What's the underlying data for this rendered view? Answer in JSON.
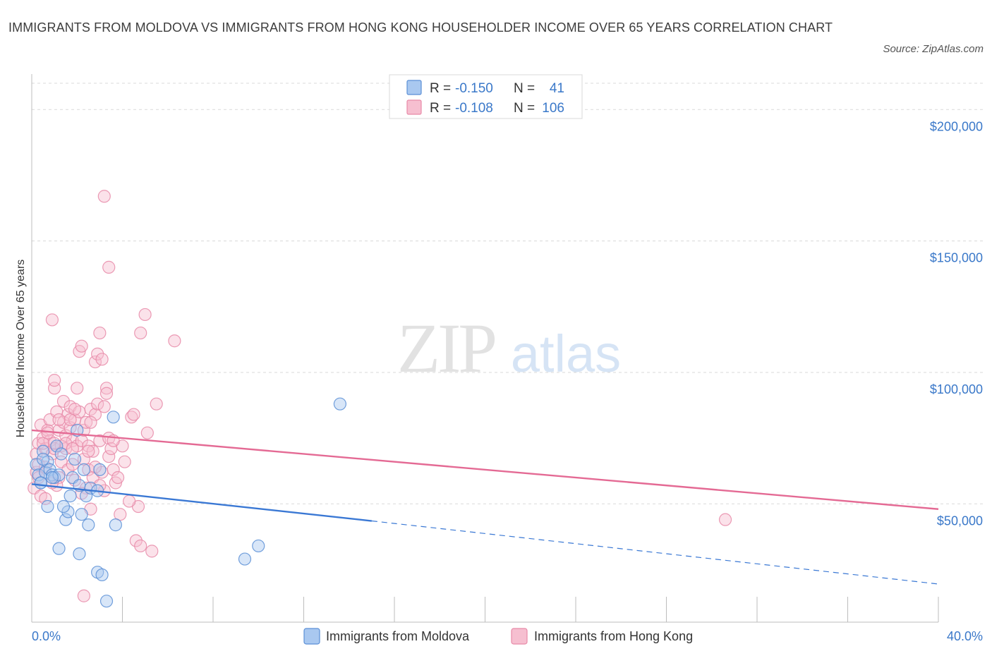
{
  "title": "IMMIGRANTS FROM MOLDOVA VS IMMIGRANTS FROM HONG KONG HOUSEHOLDER INCOME OVER 65 YEARS CORRELATION CHART",
  "source": "Source: ZipAtlas.com",
  "watermark": {
    "zip": "ZIP",
    "atlas": "atlas"
  },
  "colors": {
    "moldova_fill": "#a9c8f0",
    "moldova_stroke": "#5b8fd6",
    "moldova_line": "#3a78d4",
    "hongkong_fill": "#f6bfd0",
    "hongkong_stroke": "#e88aa8",
    "hongkong_line": "#e46a94",
    "axis_text": "#3a78c9",
    "grid": "#d9d9d9"
  },
  "legend": {
    "r_label": "R =",
    "n_label": "N =",
    "moldova": {
      "r": "-0.150",
      "n": "41"
    },
    "hongkong": {
      "r": "-0.108",
      "n": "106"
    }
  },
  "bottom_legend": {
    "moldova": "Immigrants from Moldova",
    "hongkong": "Immigrants from Hong Kong"
  },
  "chart_data": {
    "type": "scatter",
    "title": "IMMIGRANTS FROM MOLDOVA VS IMMIGRANTS FROM HONG KONG HOUSEHOLDER INCOME OVER 65 YEARS CORRELATION CHART",
    "xlabel": "",
    "ylabel": "Householder Income Over 65 years",
    "xlim": [
      0,
      40
    ],
    "ylim": [
      5000,
      210000
    ],
    "x_tick_labels": [
      "0.0%",
      "40.0%"
    ],
    "y_ticks": [
      50000,
      100000,
      150000,
      200000
    ],
    "y_tick_labels": [
      "$50,000",
      "$100,000",
      "$150,000",
      "$200,000"
    ],
    "grid": true,
    "series": [
      {
        "name": "Immigrants from Moldova",
        "r": -0.15,
        "n": 41,
        "points": [
          [
            0.2,
            65000
          ],
          [
            0.3,
            61000
          ],
          [
            0.4,
            58000
          ],
          [
            0.5,
            70000
          ],
          [
            0.6,
            62000
          ],
          [
            0.7,
            66000
          ],
          [
            0.8,
            63000
          ],
          [
            0.9,
            61000
          ],
          [
            1.0,
            60000
          ],
          [
            1.1,
            72000
          ],
          [
            1.2,
            61000
          ],
          [
            0.5,
            67000
          ],
          [
            0.7,
            49000
          ],
          [
            1.3,
            69000
          ],
          [
            1.5,
            44000
          ],
          [
            1.6,
            47000
          ],
          [
            1.7,
            53000
          ],
          [
            1.8,
            60000
          ],
          [
            1.9,
            67000
          ],
          [
            2.0,
            78000
          ],
          [
            2.1,
            57000
          ],
          [
            2.3,
            63000
          ],
          [
            2.4,
            53000
          ],
          [
            2.5,
            42000
          ],
          [
            2.6,
            56000
          ],
          [
            2.9,
            55000
          ],
          [
            3.0,
            63000
          ],
          [
            3.6,
            83000
          ],
          [
            3.7,
            42000
          ],
          [
            1.2,
            33000
          ],
          [
            2.1,
            31000
          ],
          [
            2.9,
            24000
          ],
          [
            3.1,
            23000
          ],
          [
            3.3,
            13000
          ],
          [
            9.4,
            29000
          ],
          [
            10.0,
            34000
          ],
          [
            13.6,
            88000
          ],
          [
            0.9,
            60000
          ],
          [
            1.4,
            49000
          ],
          [
            2.2,
            46000
          ],
          [
            0.4,
            58000
          ]
        ]
      },
      {
        "name": "Immigrants from Hong Kong",
        "r": -0.108,
        "n": 106,
        "points": [
          [
            0.1,
            56000
          ],
          [
            0.2,
            62000
          ],
          [
            0.2,
            69000
          ],
          [
            0.3,
            73000
          ],
          [
            0.3,
            65000
          ],
          [
            0.4,
            80000
          ],
          [
            0.4,
            53000
          ],
          [
            0.5,
            75000
          ],
          [
            0.6,
            71000
          ],
          [
            0.6,
            64000
          ],
          [
            0.7,
            78000
          ],
          [
            0.8,
            82000
          ],
          [
            0.8,
            74000
          ],
          [
            0.9,
            69000
          ],
          [
            1.0,
            94000
          ],
          [
            1.0,
            97000
          ],
          [
            1.0,
            71000
          ],
          [
            1.1,
            85000
          ],
          [
            1.2,
            60000
          ],
          [
            1.2,
            78000
          ],
          [
            1.3,
            66000
          ],
          [
            1.3,
            72000
          ],
          [
            1.4,
            89000
          ],
          [
            1.4,
            81000
          ],
          [
            1.5,
            76000
          ],
          [
            1.5,
            71000
          ],
          [
            1.6,
            84000
          ],
          [
            1.6,
            63000
          ],
          [
            1.7,
            79000
          ],
          [
            1.7,
            87000
          ],
          [
            1.8,
            74000
          ],
          [
            1.8,
            65000
          ],
          [
            1.9,
            59000
          ],
          [
            1.9,
            82000
          ],
          [
            2.0,
            94000
          ],
          [
            2.0,
            72000
          ],
          [
            2.1,
            108000
          ],
          [
            2.1,
            85000
          ],
          [
            2.2,
            110000
          ],
          [
            2.2,
            74000
          ],
          [
            2.3,
            78000
          ],
          [
            2.3,
            67000
          ],
          [
            2.4,
            81000
          ],
          [
            2.4,
            56000
          ],
          [
            2.5,
            72000
          ],
          [
            2.5,
            63000
          ],
          [
            2.6,
            86000
          ],
          [
            2.6,
            48000
          ],
          [
            2.7,
            70000
          ],
          [
            2.7,
            60000
          ],
          [
            2.8,
            104000
          ],
          [
            2.8,
            84000
          ],
          [
            2.9,
            107000
          ],
          [
            2.9,
            88000
          ],
          [
            3.0,
            115000
          ],
          [
            3.0,
            74000
          ],
          [
            3.1,
            105000
          ],
          [
            3.1,
            62000
          ],
          [
            3.2,
            87000
          ],
          [
            3.2,
            55000
          ],
          [
            3.3,
            94000
          ],
          [
            3.3,
            92000
          ],
          [
            3.4,
            75000
          ],
          [
            3.4,
            68000
          ],
          [
            3.5,
            71000
          ],
          [
            3.6,
            63000
          ],
          [
            3.7,
            58000
          ],
          [
            3.8,
            60000
          ],
          [
            3.9,
            46000
          ],
          [
            4.0,
            72000
          ],
          [
            4.1,
            66000
          ],
          [
            4.4,
            83000
          ],
          [
            4.5,
            84000
          ],
          [
            4.6,
            36000
          ],
          [
            4.7,
            49000
          ],
          [
            4.8,
            34000
          ],
          [
            4.8,
            115000
          ],
          [
            5.0,
            122000
          ],
          [
            5.1,
            77000
          ],
          [
            5.3,
            32000
          ],
          [
            5.5,
            88000
          ],
          [
            6.3,
            112000
          ],
          [
            3.2,
            167000
          ],
          [
            3.4,
            140000
          ],
          [
            0.9,
            120000
          ],
          [
            2.3,
            15000
          ],
          [
            1.1,
            57000
          ],
          [
            1.5,
            73000
          ],
          [
            0.5,
            73000
          ],
          [
            0.7,
            77000
          ],
          [
            1.9,
            86000
          ],
          [
            2.5,
            70000
          ],
          [
            0.3,
            60000
          ],
          [
            0.9,
            58000
          ],
          [
            1.7,
            82000
          ],
          [
            2.8,
            64000
          ],
          [
            4.3,
            51000
          ],
          [
            2.2,
            54000
          ],
          [
            1.2,
            82000
          ],
          [
            0.6,
            52000
          ],
          [
            3.6,
            74000
          ],
          [
            1.8,
            71000
          ],
          [
            2.6,
            81000
          ],
          [
            3.0,
            57000
          ],
          [
            1.0,
            73000
          ],
          [
            30.6,
            44000
          ]
        ]
      }
    ],
    "trend_lines": [
      {
        "series": "Immigrants from Moldova",
        "solid": {
          "x": [
            0,
            15
          ],
          "y": [
            57500,
            43500
          ]
        },
        "dashed": {
          "x": [
            15,
            40
          ],
          "y": [
            43500,
            19500
          ]
        }
      },
      {
        "series": "Immigrants from Hong Kong",
        "solid": {
          "x": [
            0,
            40
          ],
          "y": [
            78000,
            48000
          ]
        }
      }
    ]
  }
}
